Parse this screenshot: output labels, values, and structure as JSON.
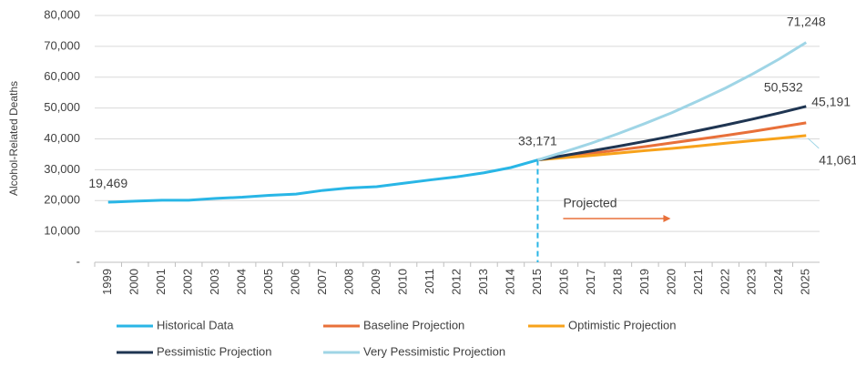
{
  "chart_data": {
    "type": "line",
    "y_label": "Alcohol-Related Deaths",
    "annotations": [
      "Projected"
    ],
    "categories": [
      "1999",
      "2000",
      "2001",
      "2002",
      "2003",
      "2004",
      "2005",
      "2006",
      "2007",
      "2008",
      "2009",
      "2010",
      "2011",
      "2012",
      "2013",
      "2014",
      "2015",
      "2016",
      "2017",
      "2018",
      "2019",
      "2020",
      "2021",
      "2022",
      "2023",
      "2024",
      "2025"
    ],
    "ylim": [
      0,
      80000
    ],
    "yticks": [
      {
        "value": 0,
        "label": "-"
      },
      {
        "value": 10000,
        "label": "10,000"
      },
      {
        "value": 20000,
        "label": "20,000"
      },
      {
        "value": 30000,
        "label": "30,000"
      },
      {
        "value": 40000,
        "label": "40,000"
      },
      {
        "value": 50000,
        "label": "50,000"
      },
      {
        "value": 60000,
        "label": "60,000"
      },
      {
        "value": 70000,
        "label": "70,000"
      },
      {
        "value": 80000,
        "label": "80,000"
      }
    ],
    "grid": true,
    "legend": "bottom",
    "series": [
      {
        "name": "Historical Data",
        "color": "#29b6e6",
        "values": [
          19469,
          19800,
          20100,
          20100,
          20700,
          21100,
          21700,
          22100,
          23300,
          24100,
          24500,
          25600,
          26700,
          27700,
          29000,
          30700,
          33171,
          null,
          null,
          null,
          null,
          null,
          null,
          null,
          null,
          null,
          null
        ],
        "value_labels": [
          "19,469",
          null,
          null,
          null,
          null,
          null,
          null,
          null,
          null,
          null,
          null,
          null,
          null,
          null,
          null,
          null,
          "33,171",
          null,
          null,
          null,
          null,
          null,
          null,
          null,
          null,
          null,
          null
        ]
      },
      {
        "name": "Baseline Projection",
        "color": "#e8703a",
        "values": [
          null,
          null,
          null,
          null,
          null,
          null,
          null,
          null,
          null,
          null,
          null,
          null,
          null,
          null,
          null,
          null,
          33171,
          34200,
          35300,
          36400,
          37500,
          38700,
          39900,
          41100,
          42400,
          43800,
          45191
        ],
        "value_labels": [
          null,
          null,
          null,
          null,
          null,
          null,
          null,
          null,
          null,
          null,
          null,
          null,
          null,
          null,
          null,
          null,
          null,
          null,
          null,
          null,
          null,
          null,
          null,
          null,
          null,
          null,
          "45,191"
        ]
      },
      {
        "name": "Optimistic Projection",
        "color": "#f7a21b",
        "values": [
          null,
          null,
          null,
          null,
          null,
          null,
          null,
          null,
          null,
          null,
          null,
          null,
          null,
          null,
          null,
          null,
          33171,
          33900,
          34600,
          35400,
          36200,
          36900,
          37700,
          38600,
          39400,
          40200,
          41061
        ],
        "value_labels": [
          null,
          null,
          null,
          null,
          null,
          null,
          null,
          null,
          null,
          null,
          null,
          null,
          null,
          null,
          null,
          null,
          null,
          null,
          null,
          null,
          null,
          null,
          null,
          null,
          null,
          null,
          "41,061"
        ]
      },
      {
        "name": "Pessimistic Projection",
        "color": "#1f3552",
        "values": [
          null,
          null,
          null,
          null,
          null,
          null,
          null,
          null,
          null,
          null,
          null,
          null,
          null,
          null,
          null,
          null,
          33171,
          34600,
          36100,
          37600,
          39200,
          40900,
          42700,
          44500,
          46400,
          48400,
          50532
        ],
        "value_labels": [
          null,
          null,
          null,
          null,
          null,
          null,
          null,
          null,
          null,
          null,
          null,
          null,
          null,
          null,
          null,
          null,
          null,
          null,
          null,
          null,
          null,
          null,
          null,
          null,
          null,
          null,
          "50,532"
        ]
      },
      {
        "name": "Very Pessimistic Projection",
        "color": "#9fd5e6",
        "values": [
          null,
          null,
          null,
          null,
          null,
          null,
          null,
          null,
          null,
          null,
          null,
          null,
          null,
          null,
          null,
          null,
          33171,
          35800,
          38600,
          41700,
          45000,
          48500,
          52400,
          56500,
          61000,
          65900,
          71248
        ],
        "value_labels": [
          null,
          null,
          null,
          null,
          null,
          null,
          null,
          null,
          null,
          null,
          null,
          null,
          null,
          null,
          null,
          null,
          null,
          null,
          null,
          null,
          null,
          null,
          null,
          null,
          null,
          null,
          "71,248"
        ]
      }
    ]
  }
}
